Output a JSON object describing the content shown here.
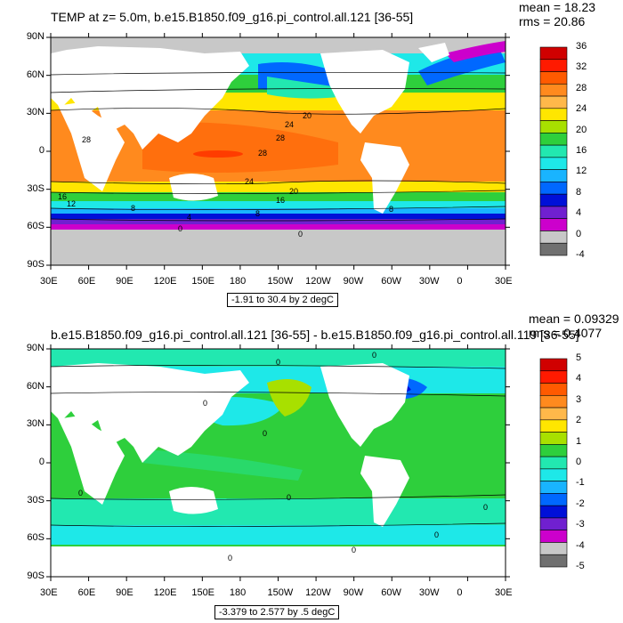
{
  "chart_data": [
    {
      "type": "heatmap",
      "title": "TEMP at z=   5.0m, b.e15.B1850.f09_g16.pi_control.all.121 [36-55]",
      "stats": {
        "mean": "mean = 18.23",
        "rms": "rms = 20.86"
      },
      "range_note": "-1.91 to 30.4 by 2 degC",
      "x_ticks": [
        "30E",
        "60E",
        "90E",
        "120E",
        "150E",
        "180",
        "150W",
        "120W",
        "90W",
        "60W",
        "30W",
        "0",
        "30E"
      ],
      "y_ticks": [
        "90N",
        "60N",
        "30N",
        "0",
        "30S",
        "60S",
        "90S"
      ],
      "colorbar": {
        "levels": [
          "36",
          "32",
          "28",
          "24",
          "20",
          "16",
          "12",
          "8",
          "4",
          "0",
          "-4"
        ],
        "colors": [
          "#d00000",
          "#ff1a00",
          "#ff5a00",
          "#ff8a1e",
          "#ffb84a",
          "#ffe600",
          "#a8e000",
          "#2ecf3c",
          "#22e8b0",
          "#1ee8e8",
          "#19b4ff",
          "#0068ff",
          "#0010d8",
          "#7020d0",
          "#cc00cc",
          "#c8c8c8",
          "#707070"
        ]
      },
      "contour_labels": [
        "28",
        "24",
        "20",
        "28",
        "28",
        "24",
        "20",
        "16",
        "16",
        "12",
        "8",
        "8",
        "8",
        "4",
        "0",
        "0"
      ],
      "land_color": "#ffffff",
      "missing_color": "#c8c8c8"
    },
    {
      "type": "heatmap",
      "title": "b.e15.B1850.f09_g16.pi_control.all.121 [36-55] - b.e15.B1850.f09_g16.pi_control.all.119 [36-55]",
      "stats": {
        "mean": "mean = 0.09329",
        "rms": "rms = 0.4077"
      },
      "range_note": "-3.379 to 2.577 by .5 degC",
      "x_ticks": [
        "30E",
        "60E",
        "90E",
        "120E",
        "150E",
        "180",
        "150W",
        "120W",
        "90W",
        "60W",
        "30W",
        "0",
        "30E"
      ],
      "y_ticks": [
        "90N",
        "60N",
        "30N",
        "0",
        "30S",
        "60S",
        "90S"
      ],
      "colorbar": {
        "levels": [
          "5",
          "4",
          "3",
          "2",
          "1",
          "0",
          "-1",
          "-2",
          "-3",
          "-4",
          "-5"
        ],
        "colors": [
          "#d00000",
          "#ff1a00",
          "#ff5a00",
          "#ff8a1e",
          "#ffb84a",
          "#ffe600",
          "#a8e000",
          "#2ecf3c",
          "#22e8b0",
          "#1ee8e8",
          "#19b4ff",
          "#0068ff",
          "#0010d8",
          "#7020d0",
          "#cc00cc",
          "#c8c8c8",
          "#707070"
        ]
      },
      "contour_labels": [
        "0",
        "0",
        "0",
        "0",
        "0",
        "0",
        "0",
        "0",
        "0",
        "0"
      ],
      "land_color": "#ffffff",
      "missing_color": "#c8c8c8"
    }
  ]
}
